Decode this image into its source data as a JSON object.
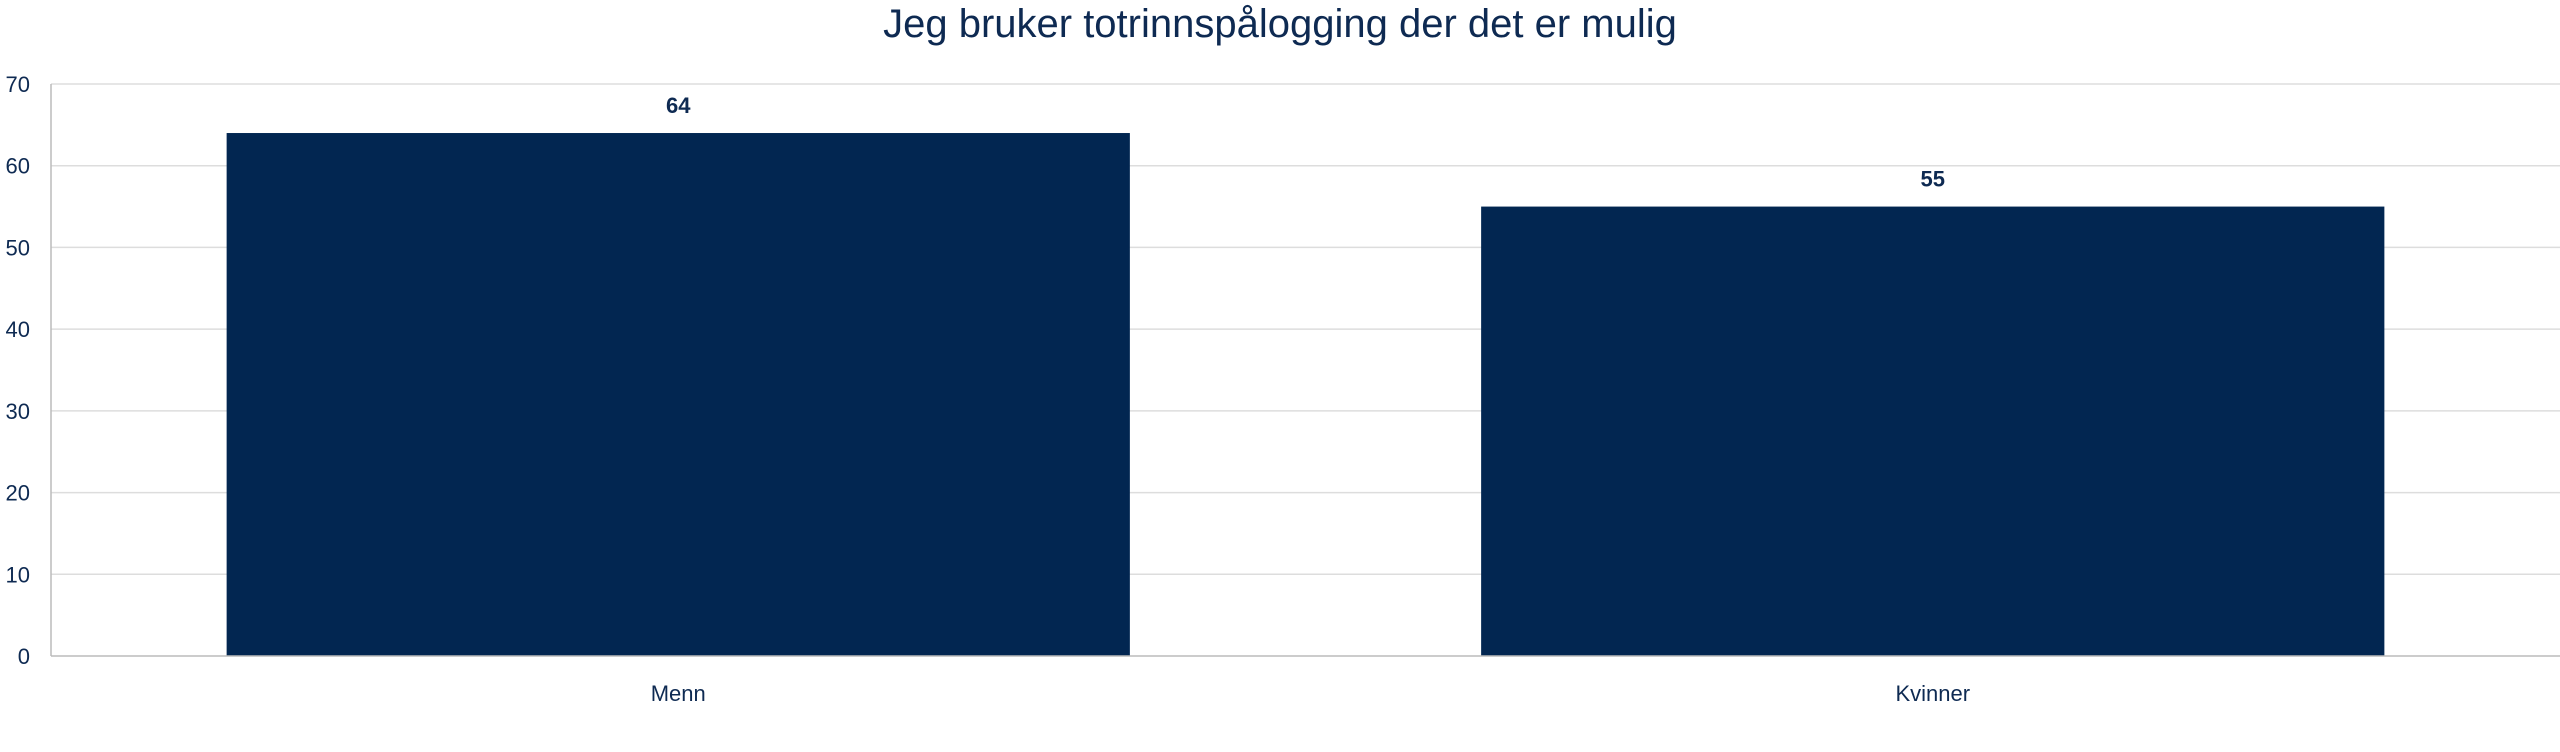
{
  "chart_data": {
    "type": "bar",
    "title": "Jeg bruker totrinnspålogging der det er mulig",
    "categories": [
      "Menn",
      "Kvinner"
    ],
    "values": [
      64,
      55
    ],
    "data_labels": [
      "64",
      "55"
    ],
    "yticks": [
      "0",
      "10",
      "20",
      "30",
      "40",
      "50",
      "60",
      "70"
    ],
    "ylim": [
      0,
      70
    ],
    "xlabel": "",
    "ylabel": "",
    "grid": true,
    "legend": "none",
    "colors": {
      "bar": "#022651",
      "text": "#0e2a52",
      "grid": "#dddddd",
      "axis": "#bbbbbb"
    }
  }
}
